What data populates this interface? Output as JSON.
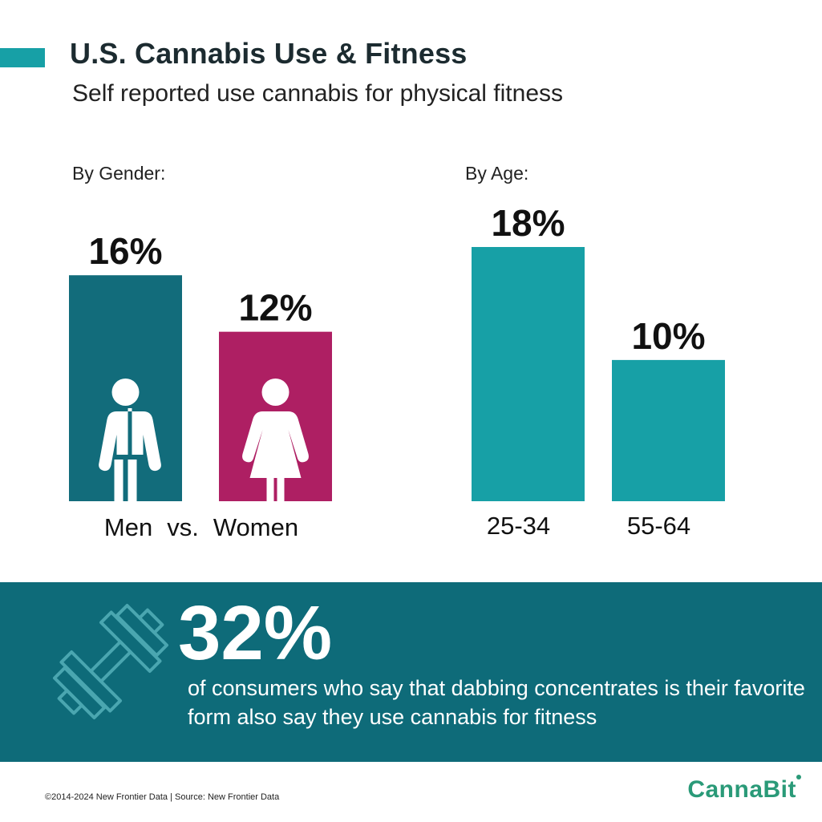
{
  "header": {
    "title": "U.S. Cannabis Use & Fitness",
    "subtitle": "Self reported use cannabis for physical fitness"
  },
  "colors": {
    "accent": "#17a0a6",
    "men": "#126c7b",
    "women": "#ae1f63",
    "age": "#17a0a6",
    "banner": "#0e6b79",
    "logo": "#2a9a78"
  },
  "chart_data": [
    {
      "type": "bar",
      "section_label": "By Gender:",
      "categories": [
        "Men",
        "Women"
      ],
      "values": [
        16,
        12
      ],
      "value_labels": [
        "16%",
        "12%"
      ],
      "icons": [
        "man-icon",
        "woman-icon"
      ],
      "vs_text": "vs.",
      "unit": "%",
      "ylim": [
        0,
        18
      ]
    },
    {
      "type": "bar",
      "section_label": "By Age:",
      "categories": [
        "25-34",
        "55-64"
      ],
      "values": [
        18,
        10
      ],
      "value_labels": [
        "18%",
        "10%"
      ],
      "unit": "%",
      "ylim": [
        0,
        18
      ]
    }
  ],
  "banner": {
    "value": "32%",
    "text": "of consumers who say that dabbing concentrates is their favorite form also say they use cannabis for fitness",
    "icon": "dumbbell-icon"
  },
  "footer": {
    "copyright": "©2014-2024  New Frontier Data | Source: New Frontier Data"
  },
  "logo": {
    "text": "CannaBit",
    "icon": "cannabit-logo"
  }
}
